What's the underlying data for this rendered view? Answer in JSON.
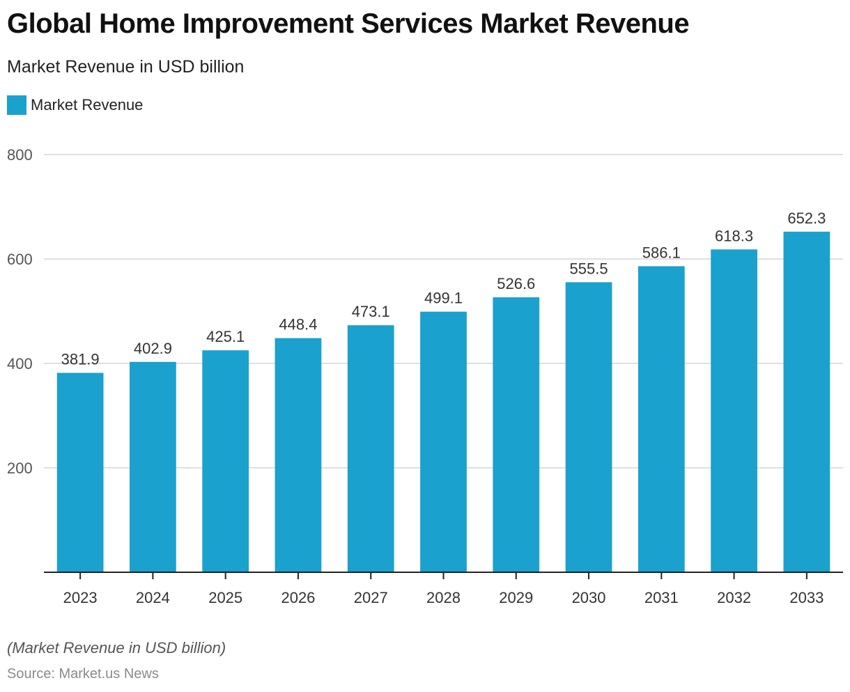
{
  "title": "Global Home Improvement Services Market Revenue",
  "subtitle": "Market Revenue in USD billion",
  "note": "(Market Revenue in USD billion)",
  "source": "Source: Market.us News",
  "colors": {
    "bar": "#1aa1cd",
    "grid": "#d6d6d6",
    "axis": "#222222",
    "text": "#333333"
  },
  "chart_data": {
    "type": "bar",
    "title": "Global Home Improvement Services Market Revenue",
    "subtitle": "Market Revenue in USD billion",
    "xlabel": "",
    "ylabel": "",
    "categories": [
      "2023",
      "2024",
      "2025",
      "2026",
      "2027",
      "2028",
      "2029",
      "2030",
      "2031",
      "2032",
      "2033"
    ],
    "series": [
      {
        "name": "Market Revenue",
        "values": [
          381.9,
          402.9,
          425.1,
          448.4,
          473.1,
          499.1,
          526.6,
          555.5,
          586.1,
          618.3,
          652.3
        ]
      }
    ],
    "data_labels": [
      "381.9",
      "402.9",
      "425.1",
      "448.4",
      "473.1",
      "499.1",
      "526.6",
      "555.5",
      "586.1",
      "618.3",
      "652.3"
    ],
    "ylim": [
      0,
      800
    ],
    "yticks": [
      200,
      400,
      600,
      800
    ],
    "ytick_labels": [
      "200",
      "400",
      "600",
      "800"
    ],
    "grid": true,
    "legend": "top-left"
  }
}
